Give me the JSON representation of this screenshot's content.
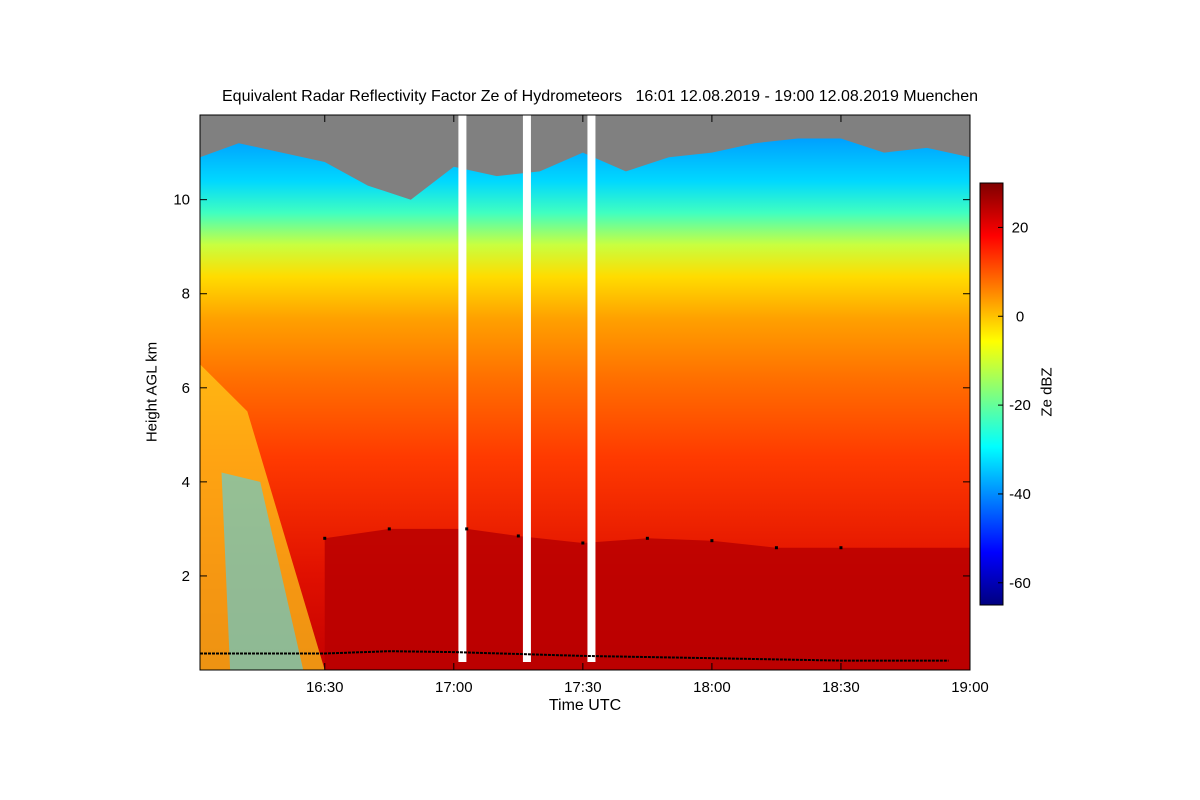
{
  "chart_data": {
    "type": "heatmap",
    "title": "Equivalent Radar Reflectivity Factor Ze of Hydrometeors   16:01 12.08.2019 - 19:00 12.08.2019 Muenchen",
    "xlabel": "Time UTC",
    "ylabel": "Height AGL km",
    "x_range": [
      "16:01",
      "19:00"
    ],
    "x_ticks": [
      "16:30",
      "17:00",
      "17:30",
      "18:00",
      "18:30",
      "19:00"
    ],
    "y_range": [
      0,
      11.8
    ],
    "y_ticks": [
      2,
      4,
      6,
      8,
      10
    ],
    "colorbar": {
      "label": "Ze dBZ",
      "range": [
        -65,
        30
      ],
      "ticks": [
        -60,
        -40,
        -20,
        0,
        20
      ],
      "colormap": [
        "#00007f",
        "#0000ff",
        "#007fff",
        "#00ffff",
        "#7fff7f",
        "#ffff00",
        "#ff7f00",
        "#ff0000",
        "#7f0000"
      ]
    },
    "no_signal_color": "#808080",
    "data_gaps_utc": [
      "17:02",
      "17:17",
      "17:32"
    ],
    "echo_top_km": [
      {
        "t": "16:01",
        "h": 10.9
      },
      {
        "t": "16:10",
        "h": 11.2
      },
      {
        "t": "16:20",
        "h": 11.0
      },
      {
        "t": "16:30",
        "h": 10.8
      },
      {
        "t": "16:40",
        "h": 10.3
      },
      {
        "t": "16:50",
        "h": 10.0
      },
      {
        "t": "17:00",
        "h": 10.7
      },
      {
        "t": "17:10",
        "h": 10.5
      },
      {
        "t": "17:20",
        "h": 10.6
      },
      {
        "t": "17:30",
        "h": 11.0
      },
      {
        "t": "17:40",
        "h": 10.6
      },
      {
        "t": "17:50",
        "h": 10.9
      },
      {
        "t": "18:00",
        "h": 11.0
      },
      {
        "t": "18:10",
        "h": 11.2
      },
      {
        "t": "18:20",
        "h": 11.3
      },
      {
        "t": "18:30",
        "h": 11.3
      },
      {
        "t": "18:40",
        "h": 11.0
      },
      {
        "t": "18:50",
        "h": 11.1
      },
      {
        "t": "19:00",
        "h": 10.9
      }
    ],
    "melting_layer_km": [
      {
        "t": "16:30",
        "h": 2.8
      },
      {
        "t": "16:45",
        "h": 3.0
      },
      {
        "t": "17:03",
        "h": 3.0
      },
      {
        "t": "17:15",
        "h": 2.85
      },
      {
        "t": "17:30",
        "h": 2.7
      },
      {
        "t": "17:45",
        "h": 2.8
      },
      {
        "t": "18:00",
        "h": 2.75
      },
      {
        "t": "18:15",
        "h": 2.6
      },
      {
        "t": "18:30",
        "h": 2.6
      }
    ],
    "cloud_base_km": [
      {
        "t": "16:01",
        "h": 0.35
      },
      {
        "t": "16:30",
        "h": 0.35
      },
      {
        "t": "16:45",
        "h": 0.4
      },
      {
        "t": "17:00",
        "h": 0.38
      },
      {
        "t": "17:30",
        "h": 0.3
      },
      {
        "t": "18:00",
        "h": 0.25
      },
      {
        "t": "18:30",
        "h": 0.2
      },
      {
        "t": "18:55",
        "h": 0.2
      }
    ]
  }
}
